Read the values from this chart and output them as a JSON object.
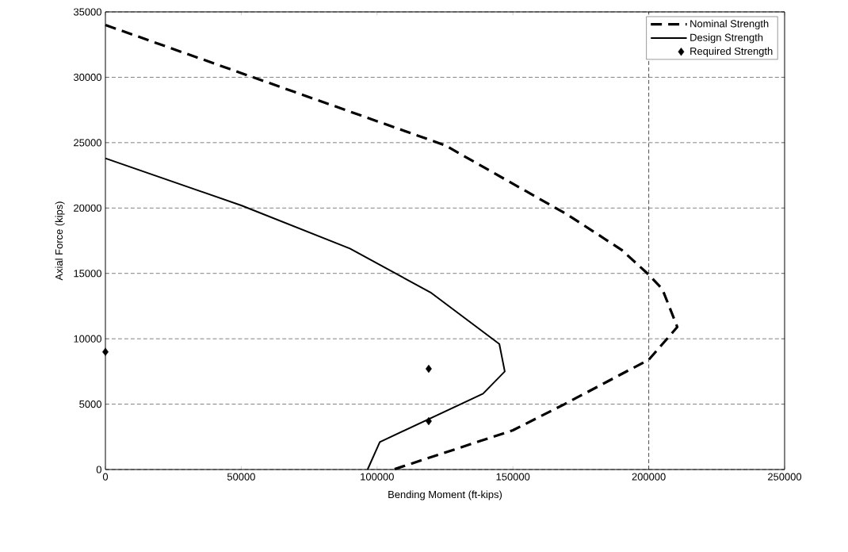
{
  "chart_data": {
    "type": "line",
    "xlabel": "Bending Moment (ft-kips)",
    "ylabel": "Axial Force (kips)",
    "xlim": [
      0,
      250000
    ],
    "ylim": [
      0,
      35000
    ],
    "xticks": [
      0,
      50000,
      100000,
      150000,
      200000,
      250000
    ],
    "yticks": [
      0,
      5000,
      10000,
      15000,
      20000,
      25000,
      30000,
      35000
    ],
    "grid": "y",
    "legend": "top right",
    "ref_lines": [
      {
        "axis": "x",
        "value": 200000,
        "line_style": "dashed"
      }
    ],
    "series": [
      {
        "name": "Nominal Strength",
        "line_style": "dashed",
        "color": "#000000",
        "x": [
          0,
          125000,
          170000,
          190000,
          200000,
          205000,
          210500,
          200000,
          169000,
          150000,
          106000
        ],
        "values": [
          34000,
          24800,
          19500,
          16800,
          14900,
          13800,
          10900,
          8400,
          5000,
          3000,
          0
        ]
      },
      {
        "name": "Design Strength",
        "line_style": "solid",
        "color": "#000000",
        "x": [
          0,
          50000,
          90000,
          120000,
          145000,
          147000,
          139000,
          101000,
          96500
        ],
        "values": [
          23800,
          20200,
          16900,
          13500,
          9600,
          7500,
          5800,
          2100,
          0
        ]
      },
      {
        "name": "Required Strength",
        "type": "scatter",
        "marker": "diamond",
        "color": "#000000",
        "x": [
          0,
          119000,
          119000
        ],
        "values": [
          9000,
          7700,
          3700
        ]
      }
    ]
  }
}
